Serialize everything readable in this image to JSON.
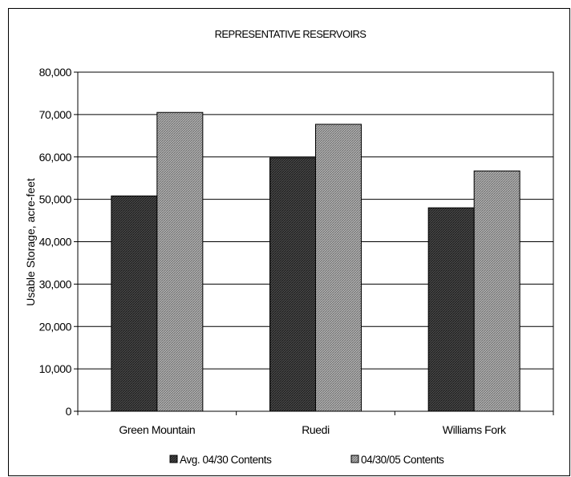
{
  "chart_data": {
    "type": "bar",
    "title": "REPRESENTATIVE RESERVOIRS",
    "xlabel": "",
    "ylabel": "Usable Storage, acre-feet",
    "categories": [
      "Green Mountain",
      "Ruedi",
      "Williams Fork"
    ],
    "series": [
      {
        "name": "Avg. 04/30 Contents",
        "values": [
          50800,
          59800,
          48000
        ],
        "color": "#3d3d3d",
        "pattern": "dark-diagonal"
      },
      {
        "name": "04/30/05 Contents",
        "values": [
          70500,
          67700,
          56700
        ],
        "color": "#9a9a9a",
        "pattern": "light-diagonal"
      }
    ],
    "ylim": [
      0,
      80000
    ],
    "yticks": [
      0,
      10000,
      20000,
      30000,
      40000,
      50000,
      60000,
      70000,
      80000
    ],
    "ytick_labels": [
      "0",
      "10,000",
      "20,000",
      "30,000",
      "40,000",
      "50,000",
      "60,000",
      "70,000",
      "80,000"
    ],
    "grid": true,
    "legend_position": "bottom"
  }
}
